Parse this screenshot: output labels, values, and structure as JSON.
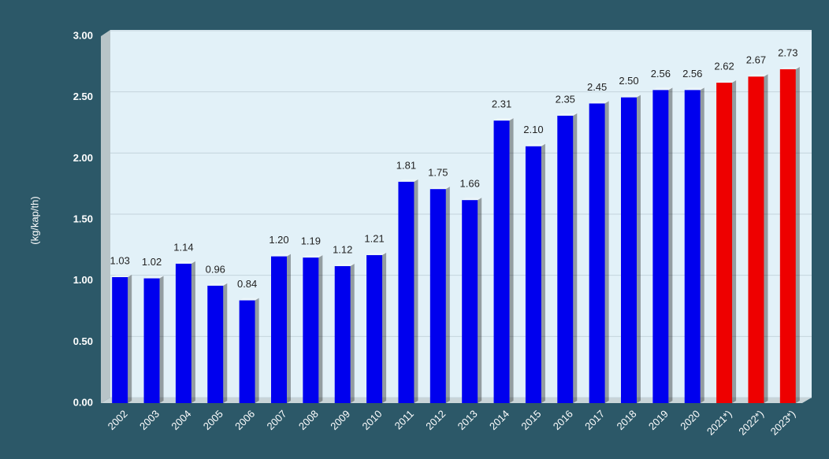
{
  "chart_data": {
    "type": "bar",
    "y_label": "(kg/kap/th)",
    "categories": [
      "2002",
      "2003",
      "2004",
      "2005",
      "2006",
      "2007",
      "2008",
      "2009",
      "2010",
      "2011",
      "2012",
      "2013",
      "2014",
      "2015",
      "2016",
      "2017",
      "2018",
      "2019",
      "2020",
      "2021*)",
      "2022*)",
      "2023*)"
    ],
    "values": [
      1.03,
      1.02,
      1.14,
      0.96,
      0.84,
      1.2,
      1.19,
      1.12,
      1.21,
      1.81,
      1.75,
      1.66,
      2.31,
      2.1,
      2.35,
      2.45,
      2.5,
      2.56,
      2.56,
      2.62,
      2.67,
      2.73
    ],
    "value_labels": [
      "1.03",
      "1.02",
      "1.14",
      "0.96",
      "0.84",
      "1.20",
      "1.19",
      "1.12",
      "1.21",
      "1.81",
      "1.75",
      "1.66",
      "2.31",
      "2.10",
      "2.35",
      "2.45",
      "2.50",
      "2.56",
      "2.56",
      "2.62",
      "2.67",
      "2.73"
    ],
    "colors": [
      "#0000ee",
      "#0000ee",
      "#0000ee",
      "#0000ee",
      "#0000ee",
      "#0000ee",
      "#0000ee",
      "#0000ee",
      "#0000ee",
      "#0000ee",
      "#0000ee",
      "#0000ee",
      "#0000ee",
      "#0000ee",
      "#0000ee",
      "#0000ee",
      "#0000ee",
      "#0000ee",
      "#0000ee",
      "#ee0000",
      "#ee0000",
      "#ee0000"
    ],
    "ylim": [
      0,
      3
    ],
    "yticks": [
      {
        "value": 0,
        "label": "0.00"
      },
      {
        "value": 0.5,
        "label": "0.50"
      },
      {
        "value": 1,
        "label": "1.00"
      },
      {
        "value": 1.5,
        "label": "1.50"
      },
      {
        "value": 2,
        "label": "2.00"
      },
      {
        "value": 2.5,
        "label": "2.50"
      },
      {
        "value": 3,
        "label": "3.00"
      }
    ],
    "grid": true
  }
}
